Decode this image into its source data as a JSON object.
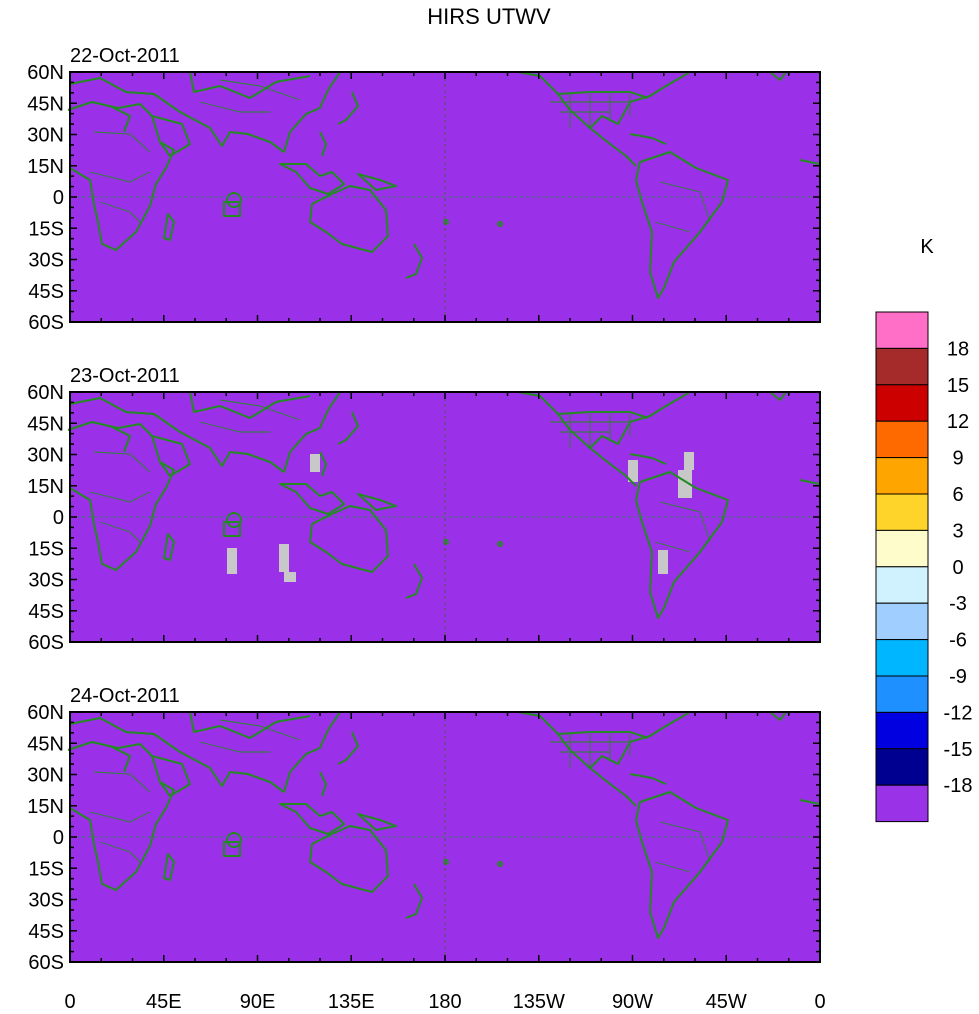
{
  "chart_data": {
    "type": "heatmap",
    "title": "HIRS UTWV",
    "panels": [
      {
        "date": "22-Oct-2011"
      },
      {
        "date": "23-Oct-2011"
      },
      {
        "date": "24-Oct-2011"
      }
    ],
    "ytick_labels": [
      "60N",
      "45N",
      "30N",
      "15N",
      "0",
      "15S",
      "30S",
      "45S",
      "60S"
    ],
    "xtick_labels": [
      "0",
      "45E",
      "90E",
      "135E",
      "180",
      "135W",
      "90W",
      "45W",
      "0"
    ],
    "xlim_deg_east": [
      0,
      360
    ],
    "ylim_deg": [
      -60,
      60
    ],
    "colorbar": {
      "unit": "K",
      "levels": [
        "18",
        "15",
        "12",
        "9",
        "6",
        "3",
        "0",
        "-3",
        "-6",
        "-9",
        "-12",
        "-15",
        "-18"
      ],
      "colors": [
        "#ff6ec7",
        "#a52a2a",
        "#cd0000",
        "#ff6a00",
        "#ffa500",
        "#ffd42a",
        "#fffccc",
        "#d0f2ff",
        "#a0cfff",
        "#00b7ff",
        "#1e90ff",
        "#0000e0",
        "#000090",
        "#9a32e8"
      ]
    },
    "map_colors": {
      "coast": "#228B22",
      "equator": "#2e8b57",
      "dateline": "#555555",
      "missing": "#c8c8c8"
    }
  }
}
